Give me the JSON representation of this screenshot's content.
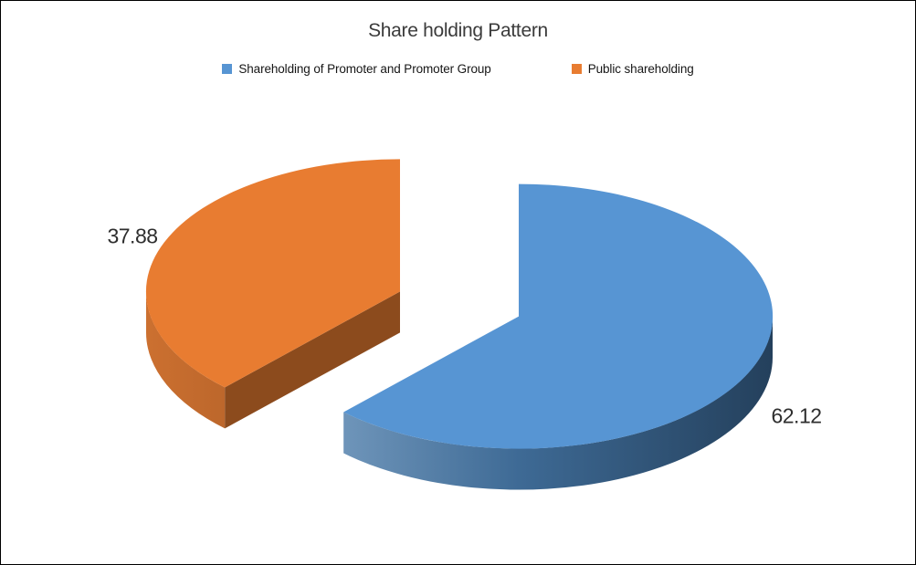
{
  "window": {
    "background": "#ffffff",
    "border_color": "#000000"
  },
  "chart_data": {
    "type": "pie",
    "style": "3d-exploded-pie",
    "title": "Share holding Pattern",
    "labels": [
      "Shareholding of Promoter and Promoter Group",
      "Public shareholding"
    ],
    "values": [
      62.12,
      37.88
    ],
    "data_labels": [
      "62.12",
      "37.88"
    ],
    "colors": [
      "#5795D3",
      "#E87C31"
    ],
    "side_light": [
      "#84A8CA",
      "#CC7030"
    ],
    "side_mid": [
      "#3E6A95",
      "#9A5322"
    ],
    "side_dark": [
      "#24405C",
      "#7C4016"
    ],
    "cut_face": [
      "#2F5172",
      "#8C4B1D"
    ],
    "slice_ids": [
      "promoter-group",
      "public"
    ],
    "legend_position": "top",
    "start_angle_deg": 0,
    "direction": "clockwise",
    "exploded": true
  }
}
